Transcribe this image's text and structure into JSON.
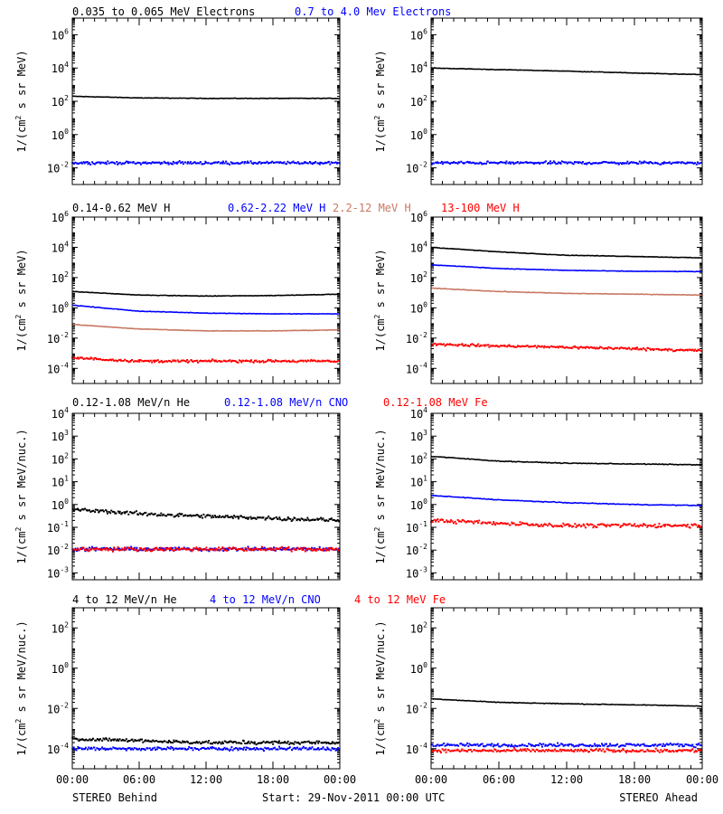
{
  "colors": {
    "black": "#000000",
    "blue": "#0000ff",
    "tan": "#c87864",
    "red": "#ff0000"
  },
  "footer": {
    "left": "STEREO Behind",
    "center": "Start: 29-Nov-2011 00:00 UTC",
    "right": "STEREO Ahead"
  },
  "xaxis": {
    "tick_labels": [
      "00:00",
      "06:00",
      "12:00",
      "18:00",
      "00:00"
    ]
  },
  "rows": [
    {
      "ylabel_parts": [
        "1/(cm",
        "2",
        " s sr MeV)"
      ],
      "legend": [
        {
          "text": "0.035 to 0.065 MeV Electrons",
          "color": "#000000"
        },
        {
          "text": "0.7 to 4.0 Mev Electrons",
          "color": "#0000ff"
        }
      ]
    },
    {
      "ylabel_parts": [
        "1/(cm",
        "2",
        " s sr MeV)"
      ],
      "legend": [
        {
          "text": "0.14-0.62 MeV H",
          "color": "#000000"
        },
        {
          "text": "0.62-2.22 MeV H",
          "color": "#0000ff"
        },
        {
          "text": "2.2-12 MeV H",
          "color": "#c87864"
        },
        {
          "text": "13-100 MeV H",
          "color": "#ff0000"
        }
      ]
    },
    {
      "ylabel_parts": [
        "1/(cm",
        "2",
        " s sr MeV/nuc.)"
      ],
      "legend": [
        {
          "text": "0.12-1.08 MeV/n He",
          "color": "#000000"
        },
        {
          "text": "0.12-1.08 MeV/n CNO",
          "color": "#0000ff"
        },
        {
          "text": "0.12-1.08 MeV Fe",
          "color": "#ff0000"
        }
      ]
    },
    {
      "ylabel_parts": [
        "1/(cm",
        "2",
        " s sr MeV/nuc.)"
      ],
      "legend": [
        {
          "text": "4 to 12 MeV/n He",
          "color": "#000000"
        },
        {
          "text": "4 to 12 MeV/n CNO",
          "color": "#0000ff"
        },
        {
          "text": "4 to 12 MeV Fe",
          "color": "#ff0000"
        }
      ]
    }
  ],
  "chart_data": [
    {
      "type": "scatter",
      "panel": "behind-electrons",
      "y_scale": "log",
      "ylim": [
        0.001,
        10000000
      ],
      "x_range_hours": [
        0,
        24
      ],
      "ytick_labels": [
        "10^-2",
        "10^0",
        "10^2",
        "10^4",
        "10^6"
      ],
      "series": [
        {
          "color": "#000000",
          "style": "line",
          "x": [
            0,
            6,
            12,
            18,
            24
          ],
          "y": [
            200,
            160,
            150,
            150,
            150
          ]
        },
        {
          "color": "#0000ff",
          "style": "scatter",
          "x": [
            0,
            6,
            12,
            18,
            24
          ],
          "y": [
            0.02,
            0.02,
            0.02,
            0.02,
            0.02
          ]
        }
      ]
    },
    {
      "type": "scatter",
      "panel": "ahead-electrons",
      "y_scale": "log",
      "ylim": [
        0.001,
        10000000
      ],
      "x_range_hours": [
        0,
        24
      ],
      "ytick_labels": [
        "10^-2",
        "10^0",
        "10^2",
        "10^4",
        "10^6"
      ],
      "series": [
        {
          "color": "#000000",
          "style": "line",
          "x": [
            0,
            6,
            12,
            18,
            24
          ],
          "y": [
            10000,
            8000,
            6500,
            5000,
            4000
          ]
        },
        {
          "color": "#0000ff",
          "style": "scatter",
          "x": [
            0,
            6,
            12,
            18,
            24
          ],
          "y": [
            0.02,
            0.02,
            0.02,
            0.02,
            0.02
          ]
        }
      ]
    },
    {
      "type": "scatter",
      "panel": "behind-protons",
      "y_scale": "log",
      "ylim": [
        1e-05,
        1000000
      ],
      "x_range_hours": [
        0,
        24
      ],
      "ytick_labels": [
        "10^-4",
        "10^-2",
        "10^0",
        "10^2",
        "10^4",
        "10^6"
      ],
      "series": [
        {
          "color": "#000000",
          "style": "line",
          "x": [
            0,
            6,
            12,
            18,
            24
          ],
          "y": [
            12,
            7,
            6,
            6.5,
            8
          ]
        },
        {
          "color": "#0000ff",
          "style": "line",
          "x": [
            0,
            6,
            12,
            18,
            24
          ],
          "y": [
            1.5,
            0.6,
            0.45,
            0.4,
            0.4
          ]
        },
        {
          "color": "#c87864",
          "style": "line",
          "x": [
            0,
            6,
            12,
            18,
            24
          ],
          "y": [
            0.08,
            0.04,
            0.03,
            0.03,
            0.035
          ]
        },
        {
          "color": "#ff0000",
          "style": "scatter",
          "x": [
            0,
            6,
            12,
            18,
            24
          ],
          "y": [
            0.0005,
            0.0003,
            0.0003,
            0.0003,
            0.0003
          ]
        }
      ]
    },
    {
      "type": "scatter",
      "panel": "ahead-protons",
      "y_scale": "log",
      "ylim": [
        1e-05,
        1000000
      ],
      "x_range_hours": [
        0,
        24
      ],
      "ytick_labels": [
        "10^-4",
        "10^-2",
        "10^0",
        "10^2",
        "10^4",
        "10^6"
      ],
      "series": [
        {
          "color": "#000000",
          "style": "line",
          "x": [
            0,
            6,
            12,
            18,
            24
          ],
          "y": [
            10000,
            5000,
            3000,
            2500,
            2000
          ]
        },
        {
          "color": "#0000ff",
          "style": "line",
          "x": [
            0,
            6,
            12,
            18,
            24
          ],
          "y": [
            700,
            400,
            300,
            260,
            250
          ]
        },
        {
          "color": "#c87864",
          "style": "line",
          "x": [
            0,
            6,
            12,
            18,
            24
          ],
          "y": [
            20,
            12,
            9,
            8,
            7
          ]
        },
        {
          "color": "#ff0000",
          "style": "scatter",
          "x": [
            0,
            6,
            12,
            18,
            24
          ],
          "y": [
            0.004,
            0.003,
            0.0025,
            0.002,
            0.0015
          ]
        }
      ]
    },
    {
      "type": "scatter",
      "panel": "behind-heavy-low",
      "y_scale": "log",
      "ylim": [
        0.0005,
        10000
      ],
      "x_range_hours": [
        0,
        24
      ],
      "ytick_labels": [
        "10^-3",
        "10^-2",
        "10^-1",
        "10^0",
        "10^1",
        "10^2",
        "10^3",
        "10^4"
      ],
      "series": [
        {
          "color": "#000000",
          "style": "scatter",
          "x": [
            0,
            6,
            12,
            18,
            24
          ],
          "y": [
            0.6,
            0.4,
            0.3,
            0.25,
            0.2
          ]
        },
        {
          "color": "#0000ff",
          "style": "scatter",
          "x": [
            0,
            6,
            12,
            18,
            24
          ],
          "y": [
            0.011,
            0.011,
            0.011,
            0.011,
            0.011
          ]
        },
        {
          "color": "#ff0000",
          "style": "scatter",
          "x": [
            0,
            6,
            12,
            18,
            24
          ],
          "y": [
            0.011,
            0.011,
            0.011,
            0.011,
            0.011
          ]
        }
      ]
    },
    {
      "type": "scatter",
      "panel": "ahead-heavy-low",
      "y_scale": "log",
      "ylim": [
        0.0005,
        10000
      ],
      "x_range_hours": [
        0,
        24
      ],
      "ytick_labels": [
        "10^-3",
        "10^-2",
        "10^-1",
        "10^0",
        "10^1",
        "10^2",
        "10^3",
        "10^4"
      ],
      "series": [
        {
          "color": "#000000",
          "style": "line",
          "x": [
            0,
            6,
            12,
            18,
            24
          ],
          "y": [
            130,
            80,
            65,
            60,
            55
          ]
        },
        {
          "color": "#0000ff",
          "style": "line",
          "x": [
            0,
            6,
            12,
            18,
            24
          ],
          "y": [
            2.5,
            1.6,
            1.2,
            1.0,
            0.9
          ]
        },
        {
          "color": "#ff0000",
          "style": "scatter",
          "x": [
            0,
            6,
            12,
            18,
            24
          ],
          "y": [
            0.2,
            0.15,
            0.12,
            0.12,
            0.12
          ]
        }
      ]
    },
    {
      "type": "scatter",
      "panel": "behind-heavy-high",
      "y_scale": "log",
      "ylim": [
        1e-05,
        1000
      ],
      "x_range_hours": [
        0,
        24
      ],
      "ytick_labels": [
        "10^-4",
        "10^-2",
        "10^0",
        "10^2"
      ],
      "series": [
        {
          "color": "#000000",
          "style": "scatter",
          "x": [
            0,
            6,
            12,
            18,
            24
          ],
          "y": [
            0.0003,
            0.00025,
            0.0002,
            0.0002,
            0.0002
          ]
        },
        {
          "color": "#0000ff",
          "style": "scatter",
          "x": [
            0,
            6,
            12,
            18,
            24
          ],
          "y": [
            0.0001,
            0.0001,
            0.0001,
            0.0001,
            0.0001
          ]
        }
      ]
    },
    {
      "type": "scatter",
      "panel": "ahead-heavy-high",
      "y_scale": "log",
      "ylim": [
        1e-05,
        1000
      ],
      "x_range_hours": [
        0,
        24
      ],
      "ytick_labels": [
        "10^-4",
        "10^-2",
        "10^0",
        "10^2"
      ],
      "series": [
        {
          "color": "#000000",
          "style": "line",
          "x": [
            0,
            6,
            12,
            18,
            24
          ],
          "y": [
            0.03,
            0.02,
            0.017,
            0.015,
            0.013
          ]
        },
        {
          "color": "#0000ff",
          "style": "scatter",
          "x": [
            0,
            6,
            12,
            18,
            24
          ],
          "y": [
            0.00015,
            0.00015,
            0.00015,
            0.00015,
            0.00015
          ]
        },
        {
          "color": "#ff0000",
          "style": "scatter",
          "x": [
            0,
            6,
            12,
            18,
            24
          ],
          "y": [
            8e-05,
            8e-05,
            8e-05,
            8e-05,
            8e-05
          ]
        }
      ]
    }
  ]
}
